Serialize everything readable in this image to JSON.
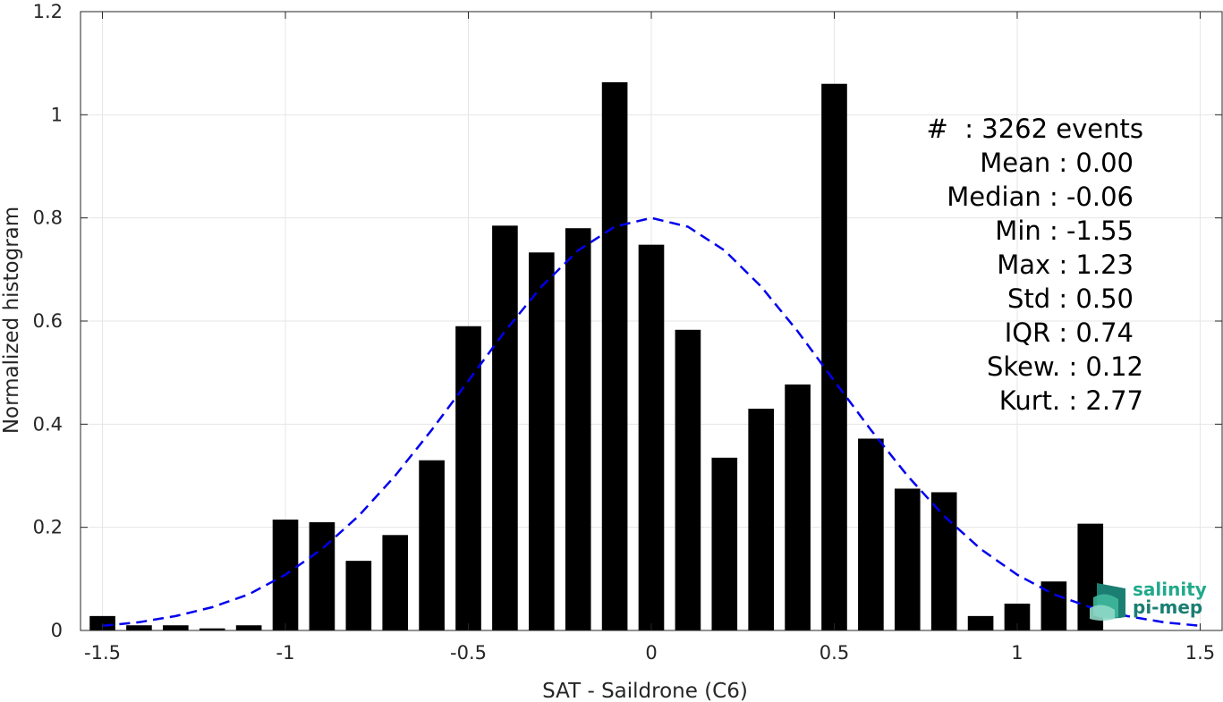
{
  "chart_data": {
    "type": "bar",
    "xlabel": "SAT - Saildrone (C6)",
    "ylabel": "Normalized histogram",
    "xlim": [
      -1.56,
      1.56
    ],
    "ylim": [
      0,
      1.2
    ],
    "grid": true,
    "xticks": [
      -1.5,
      -1,
      -0.5,
      0,
      0.5,
      1,
      1.5
    ],
    "xtick_labels": [
      "-1.5",
      "-1",
      "-0.5",
      "0",
      "0.5",
      "1",
      "1.5"
    ],
    "yticks": [
      0,
      0.2,
      0.4,
      0.6,
      0.8,
      1,
      1.2
    ],
    "ytick_labels": [
      "0",
      "0.2",
      "0.4",
      "0.6",
      "0.8",
      "1",
      "1.2"
    ],
    "bar_color": "#000000",
    "bar_width": 0.07,
    "x": [
      -1.5,
      -1.4,
      -1.3,
      -1.2,
      -1.1,
      -1.0,
      -0.9,
      -0.8,
      -0.7,
      -0.6,
      -0.5,
      -0.4,
      -0.3,
      -0.2,
      -0.1,
      0.0,
      0.1,
      0.2,
      0.3,
      0.4,
      0.5,
      0.6,
      0.7,
      0.8,
      0.9,
      1.0,
      1.1,
      1.2
    ],
    "values": [
      0.028,
      0.01,
      0.01,
      0.004,
      0.01,
      0.215,
      0.21,
      0.135,
      0.185,
      0.33,
      0.59,
      0.785,
      0.733,
      0.78,
      1.063,
      0.748,
      0.583,
      0.335,
      0.43,
      0.477,
      1.06,
      0.372,
      0.275,
      0.268,
      0.028,
      0.052,
      0.095,
      0.207
    ],
    "fit_curve": {
      "style": "dashed",
      "color": "#0000ee",
      "x": [
        -1.5,
        -1.4,
        -1.3,
        -1.2,
        -1.1,
        -1.0,
        -0.9,
        -0.8,
        -0.7,
        -0.6,
        -0.5,
        -0.4,
        -0.3,
        -0.2,
        -0.1,
        0.0,
        0.1,
        0.2,
        0.3,
        0.4,
        0.5,
        0.6,
        0.7,
        0.8,
        0.9,
        1.0,
        1.1,
        1.2,
        1.3,
        1.4,
        1.5
      ],
      "y": [
        0.009,
        0.016,
        0.028,
        0.045,
        0.07,
        0.108,
        0.158,
        0.222,
        0.3,
        0.389,
        0.484,
        0.58,
        0.667,
        0.737,
        0.783,
        0.8,
        0.783,
        0.737,
        0.667,
        0.58,
        0.484,
        0.389,
        0.3,
        0.222,
        0.158,
        0.108,
        0.07,
        0.045,
        0.028,
        0.016,
        0.009
      ]
    }
  },
  "stats": {
    "events": "#  : 3262 events",
    "mean": "Mean : 0.00",
    "median": "Median : -0.06",
    "min": "Min : -1.55",
    "max": "Max : 1.23",
    "std": "Std : 0.50",
    "iqr": "IQR : 0.74",
    "skew": "Skew. : 0.12",
    "kurt": "Kurt. : 2.77"
  },
  "logo": {
    "line1": "salinity",
    "line2": "pi-mep",
    "color1": "#22a98c",
    "color2": "#1b7e73"
  }
}
